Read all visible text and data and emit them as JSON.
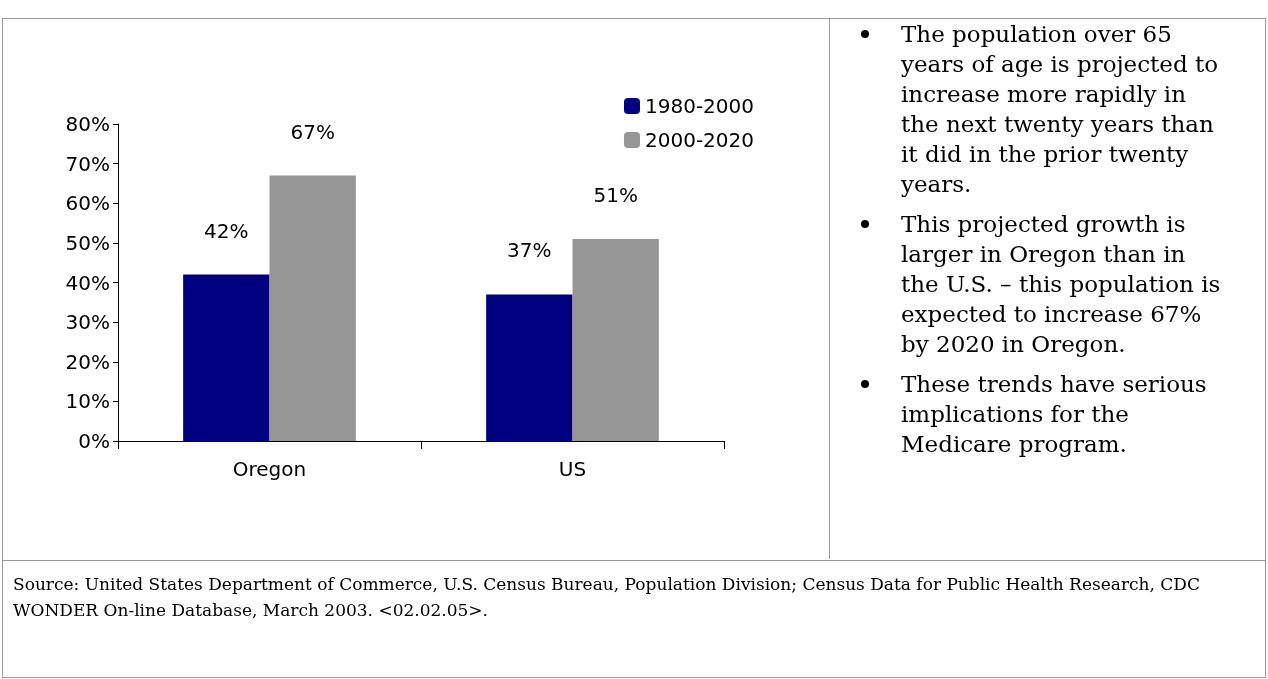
{
  "chart_data": {
    "type": "bar",
    "categories": [
      "Oregon",
      "US"
    ],
    "series": [
      {
        "name": "1980-2000",
        "color": "#000080",
        "values": [
          42,
          37
        ],
        "value_labels": [
          "42%",
          "37%"
        ]
      },
      {
        "name": "2000-2020",
        "color": "#969696",
        "values": [
          67,
          51
        ],
        "value_labels": [
          "67%",
          "51%"
        ]
      }
    ],
    "ylim": [
      0,
      80
    ],
    "yticks": [
      {
        "value": 0,
        "label": "0%"
      },
      {
        "value": 10,
        "label": "10%"
      },
      {
        "value": 20,
        "label": "20%"
      },
      {
        "value": 30,
        "label": "30%"
      },
      {
        "value": 40,
        "label": "40%"
      },
      {
        "value": 50,
        "label": "50%"
      },
      {
        "value": 60,
        "label": "60%"
      },
      {
        "value": 70,
        "label": "70%"
      },
      {
        "value": 80,
        "label": "80%"
      }
    ],
    "grid": false,
    "legend": "top right",
    "annotations": [
      "The population over 65 years of age is projected to increase more rapidly in the next twenty years than it did in the prior twenty years.",
      "This projected growth is larger in Oregon than in the U.S. – this population is expected to increase 67% by 2020 in Oregon.",
      "These trends have serious implications for the Medicare program.",
      "Source: United States Department of Commerce, U.S. Census Bureau, Population Division; Census Data for Public Health Research, CDC WONDER On-line Database, March 2003. <02.02.05>."
    ]
  }
}
